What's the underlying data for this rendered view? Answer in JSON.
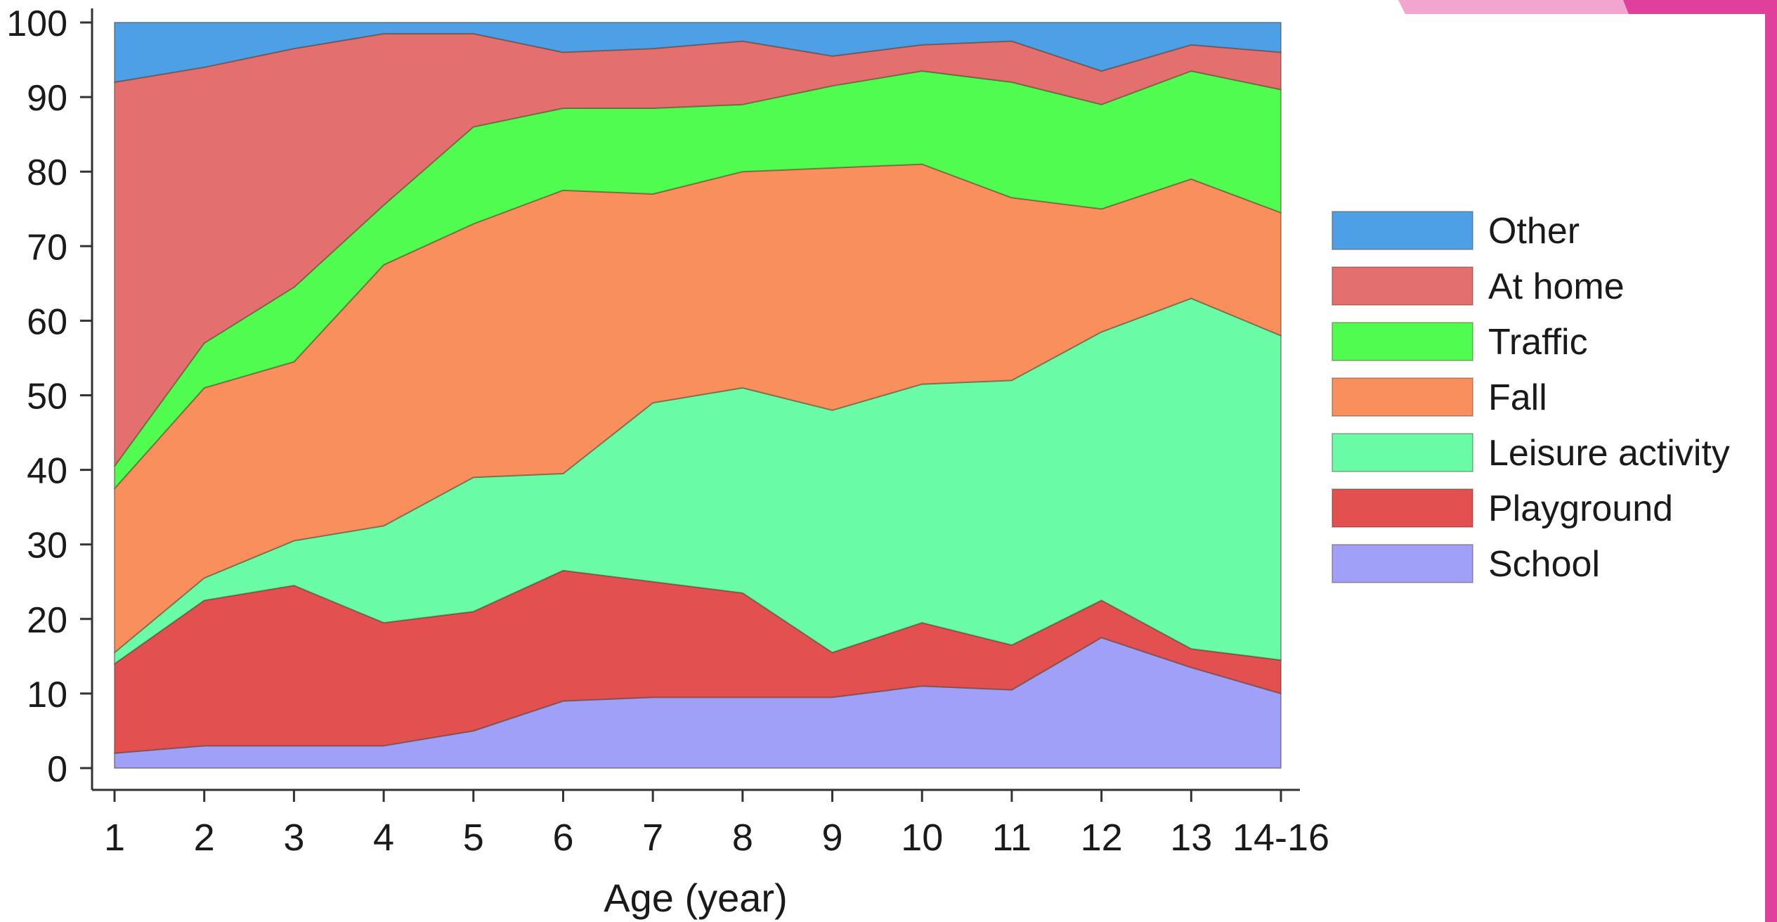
{
  "chart_data": {
    "type": "area",
    "stacked": true,
    "title": "",
    "xlabel": "Age (year)",
    "ylabel": "",
    "ylim": [
      0,
      100
    ],
    "yticks": [
      "0",
      "10",
      "20",
      "30",
      "40",
      "50",
      "60",
      "70",
      "80",
      "90",
      "100"
    ],
    "categories": [
      "1",
      "2",
      "3",
      "4",
      "5",
      "6",
      "7",
      "8",
      "9",
      "10",
      "11",
      "12",
      "13",
      "14-16"
    ],
    "series": [
      {
        "name": "School",
        "color": "#a0a0f8",
        "values": [
          2,
          3,
          3,
          3,
          5,
          9,
          9.5,
          9.5,
          9.5,
          11,
          10.5,
          17.5,
          13.5,
          10
        ]
      },
      {
        "name": "Playground",
        "color": "#e35050",
        "values": [
          12,
          19.5,
          21.5,
          16.5,
          16,
          17.5,
          15.5,
          14,
          6,
          8.5,
          6,
          5,
          2.5,
          4.5
        ]
      },
      {
        "name": "Leisure activity",
        "color": "#6afba6",
        "values": [
          1.5,
          3,
          6,
          13,
          18,
          13,
          24,
          27.5,
          32.5,
          32,
          35.5,
          36,
          47,
          43.5
        ]
      },
      {
        "name": "Fall",
        "color": "#f98f5c",
        "values": [
          22,
          25.5,
          24,
          35,
          34,
          38,
          28,
          29,
          32.5,
          29.5,
          24.5,
          16.5,
          16,
          16.5
        ]
      },
      {
        "name": "Traffic",
        "color": "#50fc50",
        "values": [
          3,
          6,
          10,
          8,
          13,
          11,
          11.5,
          9,
          11,
          12.5,
          15.5,
          14,
          14.5,
          16.5
        ]
      },
      {
        "name": "At home",
        "color": "#e46f6f",
        "values": [
          51.5,
          37,
          32,
          23,
          12.5,
          7.5,
          8,
          8.5,
          4,
          3.5,
          5.5,
          4.5,
          3.5,
          5
        ]
      },
      {
        "name": "Other",
        "color": "#4ea0e6",
        "values": [
          8,
          6,
          3.5,
          1.5,
          1.5,
          4,
          3.5,
          2.5,
          4.5,
          3,
          2.5,
          6.5,
          3,
          4
        ]
      }
    ],
    "legend_order": [
      "Other",
      "At home",
      "Traffic",
      "Fall",
      "Leisure activity",
      "Playground",
      "School"
    ],
    "legend_position": "right",
    "grid": false
  },
  "decoration": {
    "accent_color": "#e0409c",
    "accent_light": "#f2a6cf"
  }
}
